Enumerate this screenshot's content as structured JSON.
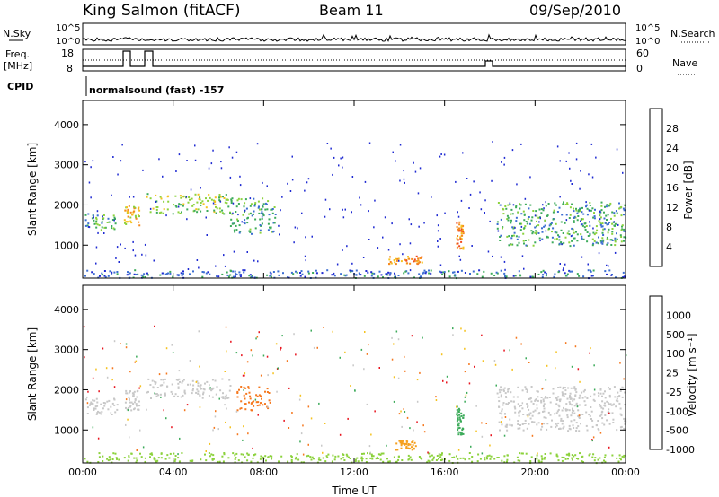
{
  "header": {
    "station": "King Salmon (fitACF)",
    "beam": "Beam 11",
    "date": "09/Sep/2010"
  },
  "status_labels": {
    "nsky": "N.Sky",
    "nsearch": "N.Search",
    "freq_line1": "Freq.",
    "freq_line2": "[MHz]",
    "nave": "Nave",
    "cpid": "CPID",
    "cpid_value": "normalsound (fast) -157",
    "noise_ticks": [
      "10^5",
      "10^0"
    ],
    "freq_ticks": [
      "18",
      "8"
    ],
    "nave_ticks": [
      "60",
      "0"
    ]
  },
  "colorbars": {
    "power": {
      "label": "Power [dB]",
      "ticks": [
        "28",
        "24",
        "20",
        "16",
        "12",
        "8",
        "4"
      ],
      "colors": [
        "#e8141e",
        "#f04a1e",
        "#f58a1e",
        "#f5c21e",
        "#8cd23c",
        "#3cab5a",
        "#3c6ed2",
        "#1e2ad2"
      ]
    },
    "velocity": {
      "label": "Velocity [m s⁻¹]",
      "ticks": [
        "1000",
        "500",
        "100",
        "25",
        "-25",
        "-100",
        "-500",
        "-1000"
      ],
      "colors": [
        "#2c48c8",
        "#2c8c5a",
        "#5ec82c",
        "#c8c8c8",
        "#c8c8c8",
        "#f5c21e",
        "#f5781e",
        "#e8141e"
      ]
    }
  },
  "chart_data": [
    {
      "type": "heatmap",
      "title": "Power",
      "ylabel": "Slant Range [km]",
      "xlabel": "",
      "xlim_hours": [
        0,
        24
      ],
      "ylim_km": [
        180,
        4600
      ],
      "yticks": [
        "4000",
        "3000",
        "2000",
        "1000"
      ],
      "ytick_values": [
        4000,
        3000,
        2000,
        1000
      ],
      "xticks": [
        "00:00",
        "04:00",
        "08:00",
        "12:00",
        "16:00",
        "20:00",
        "00:00"
      ],
      "regions": [
        {
          "t0": 0.1,
          "t1": 1.5,
          "r0": 1400,
          "r1": 1800,
          "level": 2
        },
        {
          "t0": 1.8,
          "t1": 2.5,
          "r0": 1500,
          "r1": 2000,
          "level": 4
        },
        {
          "t0": 2.8,
          "t1": 6.5,
          "r0": 1800,
          "r1": 2300,
          "level": 3
        },
        {
          "t0": 6.5,
          "t1": 8.5,
          "r0": 1300,
          "r1": 2200,
          "level": 2
        },
        {
          "t0": 13.5,
          "t1": 15,
          "r0": 550,
          "r1": 750,
          "level": 5
        },
        {
          "t0": 16.5,
          "t1": 16.8,
          "r0": 900,
          "r1": 1600,
          "level": 5
        },
        {
          "t0": 18.3,
          "t1": 24,
          "r0": 1000,
          "r1": 2100,
          "level": 2
        },
        {
          "t0": 0,
          "t1": 24,
          "r0": 200,
          "r1": 400,
          "level": 1
        }
      ]
    },
    {
      "type": "heatmap",
      "title": "Velocity",
      "ylabel": "Slant Range [km]",
      "xlabel": "Time UT",
      "xlim_hours": [
        0,
        24
      ],
      "ylim_km": [
        180,
        4600
      ],
      "yticks": [
        "4000",
        "3000",
        "2000",
        "1000"
      ],
      "ytick_values": [
        4000,
        3000,
        2000,
        1000
      ],
      "xticks": [
        "00:00",
        "04:00",
        "08:00",
        "12:00",
        "16:00",
        "20:00",
        "00:00"
      ],
      "regions": [
        {
          "t0": 0.1,
          "t1": 1.5,
          "r0": 1400,
          "r1": 1800,
          "color": "#c8c8c8"
        },
        {
          "t0": 1.8,
          "t1": 2.5,
          "r0": 1500,
          "r1": 2000,
          "color": "#c8c8c8"
        },
        {
          "t0": 2.8,
          "t1": 6.5,
          "r0": 1800,
          "r1": 2300,
          "color": "#c8c8c8"
        },
        {
          "t0": 6.8,
          "t1": 8.3,
          "r0": 1500,
          "r1": 2100,
          "color": "#f5781e"
        },
        {
          "t0": 13.8,
          "t1": 14.7,
          "r0": 500,
          "r1": 750,
          "color": "#f5a01e"
        },
        {
          "t0": 16.5,
          "t1": 16.8,
          "r0": 900,
          "r1": 1600,
          "color": "#3cab5a"
        },
        {
          "t0": 18.3,
          "t1": 24,
          "r0": 1000,
          "r1": 2100,
          "color": "#c8c8c8"
        },
        {
          "t0": 0,
          "t1": 24,
          "r0": 200,
          "r1": 450,
          "color": "#8cd23c"
        }
      ]
    }
  ]
}
